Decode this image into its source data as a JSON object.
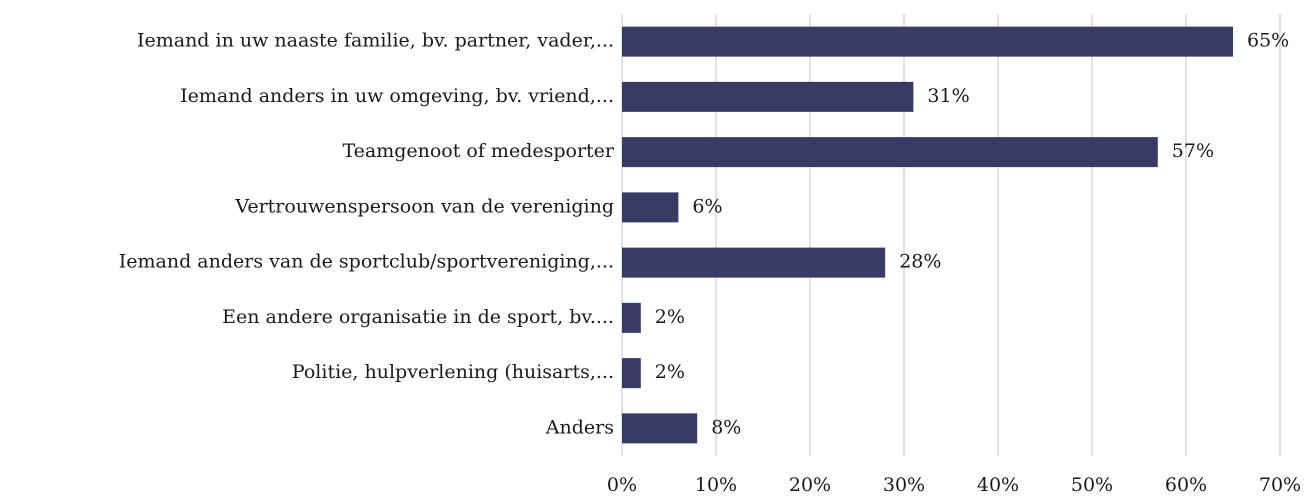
{
  "chart_data": {
    "type": "bar",
    "orientation": "horizontal",
    "categories": [
      "Iemand in uw naaste familie, bv. partner, vader,...",
      "Iemand anders in uw omgeving, bv. vriend,...",
      "Teamgenoot of medesporter",
      "Vertrouwenspersoon van de vereniging",
      "Iemand anders van de sportclub/sportvereniging,...",
      "Een andere organisatie in de sport, bv....",
      "Politie, hulpverlening (huisarts,...",
      "Anders"
    ],
    "values": [
      65,
      31,
      57,
      6,
      28,
      2,
      2,
      8
    ],
    "value_labels": [
      "65%",
      "31%",
      "57%",
      "6%",
      "28%",
      "2%",
      "2%",
      "8%"
    ],
    "color": "#383c64",
    "xlim": [
      0,
      70
    ],
    "xticks": [
      {
        "value": 0,
        "label": "0%"
      },
      {
        "value": 10,
        "label": "10%"
      },
      {
        "value": 20,
        "label": "20%"
      },
      {
        "value": 30,
        "label": "30%"
      },
      {
        "value": 40,
        "label": "40%"
      },
      {
        "value": 50,
        "label": "50%"
      },
      {
        "value": 60,
        "label": "60%"
      },
      {
        "value": 70,
        "label": "70%"
      }
    ],
    "grid": true
  }
}
